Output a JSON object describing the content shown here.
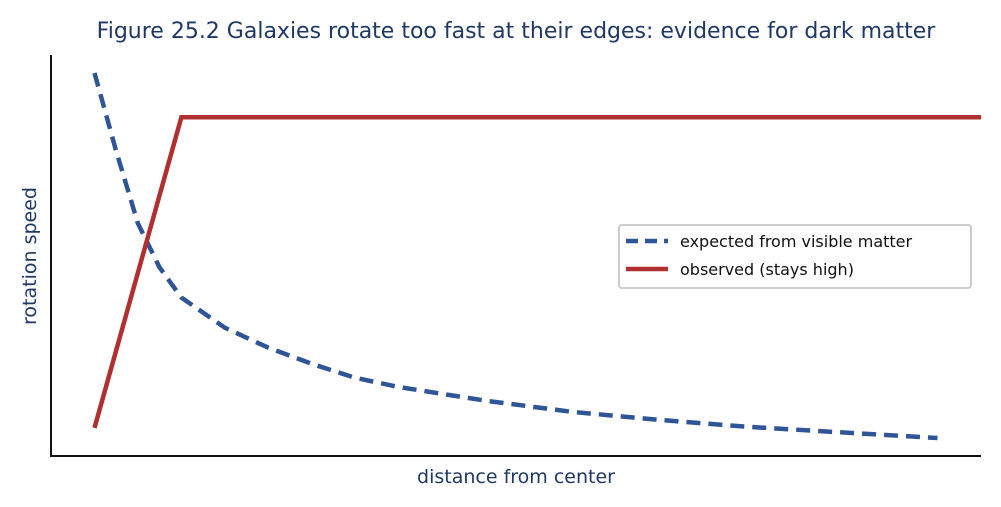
{
  "chart_data": {
    "type": "line",
    "title": "Figure 25.2  Galaxies rotate too fast at their edges: evidence for dark matter",
    "xlabel": "distance from center",
    "ylabel": "rotation speed",
    "xlim": [
      0.0,
      10.7
    ],
    "ylim": [
      0.0,
      1.0
    ],
    "grid": false,
    "ticks": false,
    "legend_position": "center-right",
    "series": [
      {
        "name": "expected from visible matter",
        "style": "dashed",
        "color": "#2f5597",
        "x": [
          0.5,
          0.75,
          1.0,
          1.25,
          1.5,
          2.0,
          2.5,
          3.0,
          3.5,
          4.0,
          5.0,
          6.0,
          7.0,
          8.0,
          9.0,
          10.2
        ],
        "y": [
          0.955,
          0.76,
          0.58,
          0.47,
          0.395,
          0.32,
          0.27,
          0.23,
          0.195,
          0.172,
          0.138,
          0.11,
          0.09,
          0.073,
          0.06,
          0.045
        ]
      },
      {
        "name": "observed (stays high)",
        "style": "solid",
        "color": "#b03030",
        "x": [
          0.5,
          1.5,
          10.7
        ],
        "y": [
          0.07,
          0.845,
          0.845
        ]
      }
    ]
  }
}
